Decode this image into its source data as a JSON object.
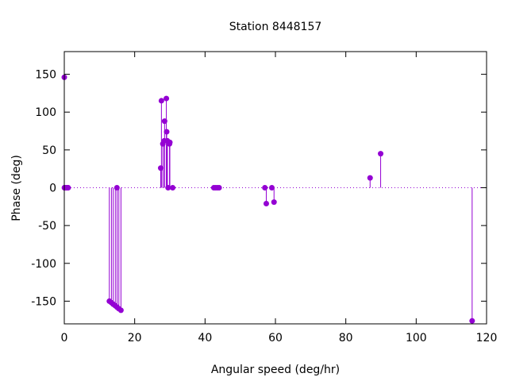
{
  "chart_data": {
    "type": "scatter",
    "style": "impulses",
    "title": "Station 8448157",
    "xlabel": "Angular speed (deg/hr)",
    "ylabel": "Phase (deg)",
    "xlim": [
      0,
      120
    ],
    "ylim": [
      -180,
      180
    ],
    "xticks": [
      0,
      20,
      40,
      60,
      80,
      100,
      120
    ],
    "yticks": [
      -150,
      -100,
      -50,
      0,
      50,
      100,
      150
    ],
    "zero_line": true,
    "grid": false,
    "legend": "none",
    "color": "#9400d3",
    "points": [
      {
        "x": 0.0,
        "y": 146
      },
      {
        "x": 0.04,
        "y": 0
      },
      {
        "x": 0.08,
        "y": 0
      },
      {
        "x": 0.5,
        "y": 0
      },
      {
        "x": 0.55,
        "y": 0
      },
      {
        "x": 1.0,
        "y": 0
      },
      {
        "x": 1.1,
        "y": 0
      },
      {
        "x": 12.8,
        "y": -150
      },
      {
        "x": 13.4,
        "y": -152
      },
      {
        "x": 13.9,
        "y": -154
      },
      {
        "x": 14.5,
        "y": -156
      },
      {
        "x": 14.96,
        "y": 0
      },
      {
        "x": 15.0,
        "y": -158
      },
      {
        "x": 15.5,
        "y": -160
      },
      {
        "x": 16.1,
        "y": -162
      },
      {
        "x": 27.4,
        "y": 26
      },
      {
        "x": 27.6,
        "y": 115
      },
      {
        "x": 28.0,
        "y": 58
      },
      {
        "x": 28.4,
        "y": 62
      },
      {
        "x": 28.5,
        "y": 88
      },
      {
        "x": 29.0,
        "y": 118
      },
      {
        "x": 29.1,
        "y": 74
      },
      {
        "x": 29.3,
        "y": 62
      },
      {
        "x": 29.5,
        "y": 0
      },
      {
        "x": 29.9,
        "y": 58
      },
      {
        "x": 30.0,
        "y": 60
      },
      {
        "x": 30.8,
        "y": 0
      },
      {
        "x": 42.5,
        "y": 0
      },
      {
        "x": 43.0,
        "y": 0
      },
      {
        "x": 43.5,
        "y": 0
      },
      {
        "x": 44.0,
        "y": 0
      },
      {
        "x": 57.0,
        "y": 0
      },
      {
        "x": 57.4,
        "y": -21
      },
      {
        "x": 58.98,
        "y": 0
      },
      {
        "x": 59.6,
        "y": -19
      },
      {
        "x": 86.9,
        "y": 13
      },
      {
        "x": 89.9,
        "y": 45
      },
      {
        "x": 115.9,
        "y": -176
      }
    ]
  }
}
